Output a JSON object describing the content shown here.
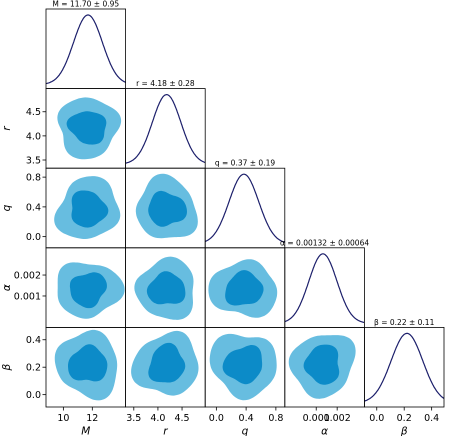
{
  "chart_data": {
    "type": "corner",
    "colors": {
      "kde_line": "#1c1f6b",
      "contour_95": "#67bde0",
      "contour_68": "#0c8bc8"
    },
    "grid": false,
    "parameters": [
      {
        "key": "M",
        "label": "M",
        "title": "M = 11.70 ± 0.95",
        "mean": 11.7,
        "sigma": 0.95,
        "range": [
          8.8,
          14.3
        ],
        "ticks": [
          10,
          12
        ],
        "tick_labels": [
          "10",
          "12"
        ]
      },
      {
        "key": "r",
        "label": "r",
        "title": "r = 4.18 ± 0.28",
        "mean": 4.18,
        "sigma": 0.28,
        "range": [
          3.33,
          4.98
        ],
        "ticks": [
          3.5,
          4.0,
          4.5
        ],
        "tick_labels": [
          "3.5",
          "4.0",
          "4.5"
        ]
      },
      {
        "key": "q",
        "label": "q",
        "title": "q = 0.37 ± 0.19",
        "mean": 0.37,
        "sigma": 0.19,
        "range": [
          -0.15,
          0.92
        ],
        "ticks": [
          0.0,
          0.4,
          0.8
        ],
        "tick_labels": [
          "0.0",
          "0.4",
          "0.8"
        ]
      },
      {
        "key": "alpha",
        "label": "α",
        "title": "α = 0.00132 ± 0.00064",
        "mean": 0.00132,
        "sigma": 0.00064,
        "range": [
          -0.0005,
          0.0033
        ],
        "ticks": [
          0.001,
          0.002
        ],
        "tick_labels": [
          "0.001",
          "0.002"
        ]
      },
      {
        "key": "beta",
        "label": "β",
        "title": "β = 0.22 ± 0.11",
        "mean": 0.22,
        "sigma": 0.11,
        "range": [
          -0.09,
          0.49
        ],
        "ticks": [
          0.0,
          0.2,
          0.4
        ],
        "tick_labels": [
          "0.0",
          "0.2",
          "0.4"
        ]
      }
    ],
    "contour_levels": [
      "68%",
      "95%"
    ]
  }
}
